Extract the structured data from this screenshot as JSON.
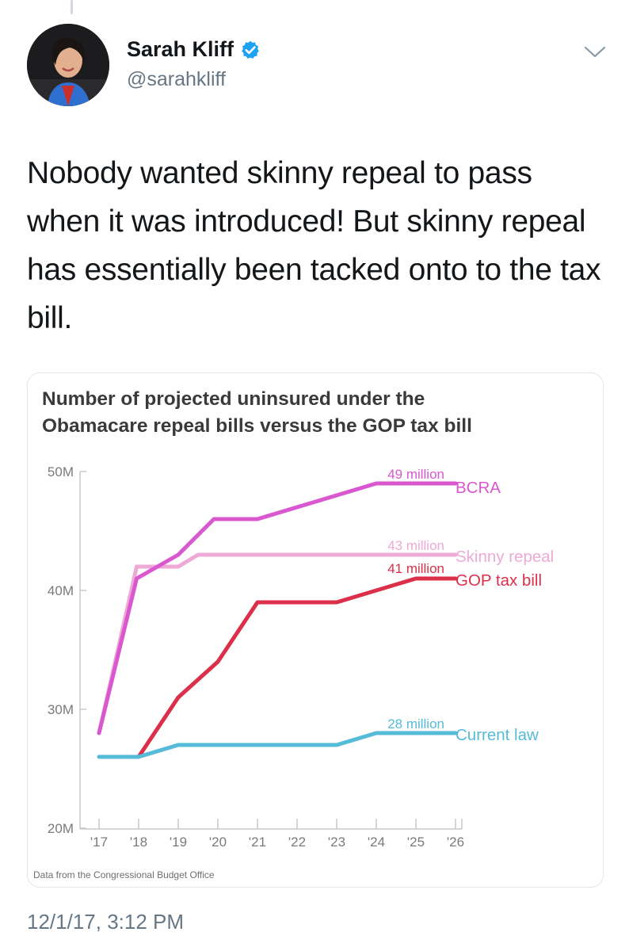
{
  "tweet": {
    "author_name": "Sarah Kliff",
    "handle": "@sarahkliff",
    "text": "Nobody wanted skinny repeal to pass when it was introduced! But skinny repeal has essentially been tacked onto to the tax bill.",
    "timestamp": "12/1/17, 3:12 PM"
  },
  "colors": {
    "bcra": "#d957cf",
    "skinny": "#eeaad6",
    "gop": "#dc2f4a",
    "current": "#55bbd9",
    "verified": "#1da1f2"
  },
  "chart_data": {
    "type": "line",
    "title_line1": "Number of projected uninsured under the",
    "title_line2": "Obamacare repeal bills versus the GOP tax bill",
    "x": [
      2017,
      2018,
      2019,
      2020,
      2021,
      2022,
      2023,
      2024,
      2025,
      2026
    ],
    "x_tick_labels": [
      "'17",
      "'18",
      "'19",
      "'20",
      "'21",
      "'22",
      "'23",
      "'24",
      "'25",
      "'26"
    ],
    "y_tick_labels": [
      "50M",
      "40M",
      "30M",
      "20M"
    ],
    "ylim": [
      20,
      50
    ],
    "yunit": "millions",
    "source": "Data from the Congressional Budget Office",
    "series": [
      {
        "key": "bcra",
        "name": "BCRA",
        "end_label": "49 million",
        "points": [
          [
            2017,
            28
          ],
          [
            2017.95,
            41
          ],
          [
            2019,
            43
          ],
          [
            2019.9,
            46
          ],
          [
            2021,
            46
          ],
          [
            2024,
            49
          ],
          [
            2026,
            49
          ]
        ]
      },
      {
        "key": "skinny",
        "name": "Skinny repeal",
        "end_label": "43 million",
        "points": [
          [
            2017,
            28
          ],
          [
            2017.95,
            42
          ],
          [
            2019,
            42
          ],
          [
            2019.5,
            43
          ],
          [
            2026,
            43
          ]
        ]
      },
      {
        "key": "gop",
        "name": "GOP tax bill",
        "end_label": "41 million",
        "points": [
          [
            2018,
            26
          ],
          [
            2019,
            31
          ],
          [
            2020,
            34
          ],
          [
            2021,
            39
          ],
          [
            2023,
            39
          ],
          [
            2025,
            41
          ],
          [
            2026,
            41
          ]
        ]
      },
      {
        "key": "current",
        "name": "Current law",
        "end_label": "28 million",
        "points": [
          [
            2017,
            26
          ],
          [
            2018,
            26
          ],
          [
            2019,
            27
          ],
          [
            2023,
            27
          ],
          [
            2024,
            28
          ],
          [
            2026,
            28
          ]
        ]
      }
    ]
  }
}
